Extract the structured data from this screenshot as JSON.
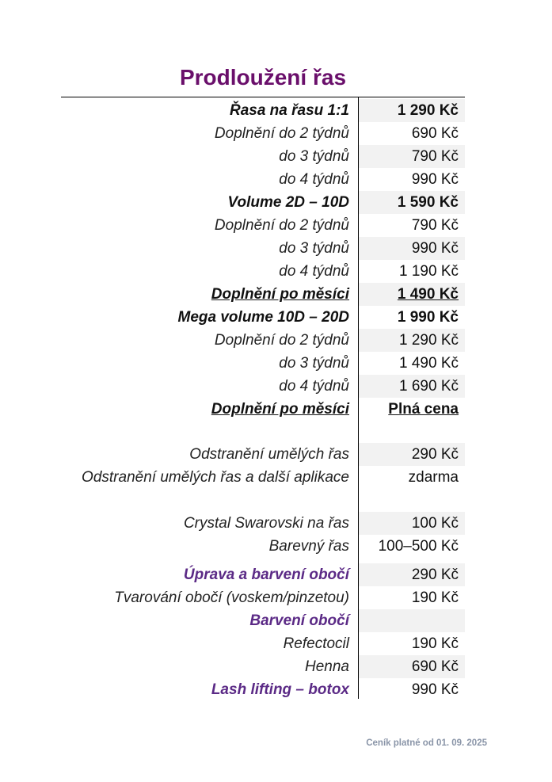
{
  "title": "Prodloužení řas",
  "rows": [
    {
      "label": "Řasa na řasu 1:1",
      "price": "1 290 Kč"
    },
    {
      "label": "Doplnění do 2 týdnů",
      "price": "690 Kč"
    },
    {
      "label": "do 3 týdnů",
      "price": "790 Kč"
    },
    {
      "label": "do 4 týdnů",
      "price": "990 Kč"
    },
    {
      "label": "Volume 2D – 10D",
      "price": "1 590 Kč"
    },
    {
      "label": "Doplnění do 2 týdnů",
      "price": "790 Kč"
    },
    {
      "label": "do 3 týdnů",
      "price": "990 Kč"
    },
    {
      "label": "do 4 týdnů",
      "price": "1 190 Kč"
    },
    {
      "label": "Doplnění po měsíci",
      "price": "1 490 Kč"
    },
    {
      "label": "Mega volume 10D – 20D",
      "price": "1 990 Kč"
    },
    {
      "label": "Doplnění do 2 týdnů",
      "price": "1 290 Kč"
    },
    {
      "label": "do 3 týdnů",
      "price": "1 490 Kč"
    },
    {
      "label": "do 4 týdnů",
      "price": "1 690 Kč"
    },
    {
      "label": "Doplnění po měsíci",
      "price": "Plná cena"
    },
    {
      "label": "Odstranění umělých řas",
      "price": "290 Kč"
    },
    {
      "label": "Odstranění umělých řas a další aplikace",
      "price": "zdarma"
    },
    {
      "label": "Crystal Swarovski na řas",
      "price": "100 Kč"
    },
    {
      "label": "Barevný řas",
      "price": "100–500 Kč"
    },
    {
      "label": "Úprava a barvení obočí",
      "price": "290 Kč"
    },
    {
      "label": "Tvarování obočí (voskem/pinzetou)",
      "price": "190 Kč"
    },
    {
      "label": "Barvení obočí",
      "price": ""
    },
    {
      "label": "Refectocil",
      "price": "190 Kč"
    },
    {
      "label": "Henna",
      "price": "690 Kč"
    },
    {
      "label": "Lash lifting – botox",
      "price": "990 Kč"
    }
  ],
  "colors": {
    "title": "#6a0f6b",
    "section": "#5b2a86",
    "footer": "#8a95a8",
    "shade": "#f2f2f2"
  },
  "footer": "Ceník platné od 01. 09. 2025"
}
